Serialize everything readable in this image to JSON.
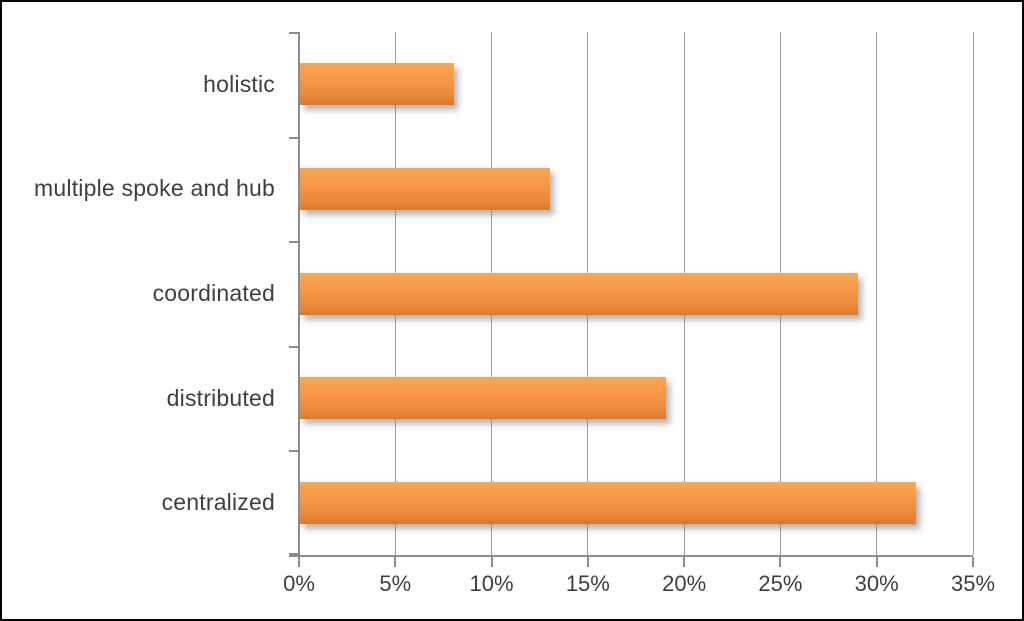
{
  "chart_data": {
    "type": "bar",
    "orientation": "horizontal",
    "title": "",
    "categories": [
      "holistic",
      "multiple spoke and hub",
      "coordinated",
      "distributed",
      "centralized"
    ],
    "values": [
      8,
      13,
      29,
      19,
      32
    ],
    "unit": "%",
    "xlim": [
      0,
      35
    ],
    "x_tick_step": 5,
    "x_tick_labels": [
      "0%",
      "5%",
      "10%",
      "15%",
      "20%",
      "25%",
      "30%",
      "35%"
    ],
    "grid": true,
    "legend": false,
    "colors": {
      "bar": "#F79646",
      "bar_gradient_top": "#F9A851",
      "bar_gradient_bottom": "#DD7A24",
      "axis_line": "#8C8C8C",
      "gridline": "#A0A0A0",
      "label_text": "#3F3F3F",
      "frame_border": "#000000",
      "background": "#FFFFFF"
    }
  }
}
